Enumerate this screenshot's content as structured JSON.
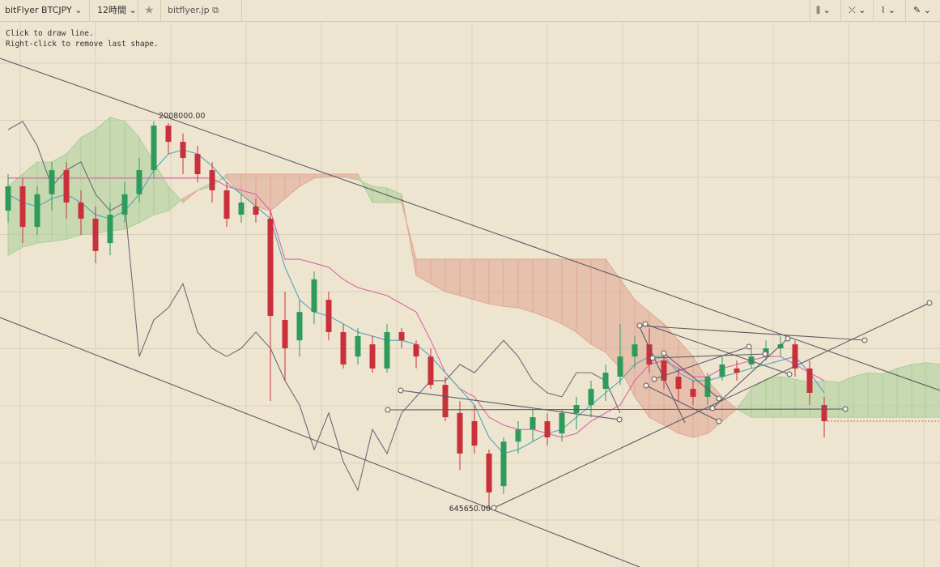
{
  "toolbar": {
    "symbol": "bitFlyer BTCJPY",
    "interval": "12時間",
    "site": "bitflyer.jp"
  },
  "instructions": [
    "Click to draw line.",
    "Right-click to remove last shape."
  ],
  "chart_data": {
    "type": "candlestick",
    "ylim": [
      437000,
      2436000
    ],
    "up_color": "#2e9a5c",
    "down_color": "#c9303a",
    "cloud_up_color": "#a9cf98",
    "cloud_down_color": "#e0a592",
    "candles": [
      [
        1693000,
        1822000,
        1651000,
        1779000
      ],
      [
        1779000,
        1808000,
        1579000,
        1636000
      ],
      [
        1636000,
        1779000,
        1608000,
        1751000
      ],
      [
        1751000,
        1865000,
        1693000,
        1836000
      ],
      [
        1836000,
        1865000,
        1665000,
        1722000
      ],
      [
        1722000,
        1765000,
        1608000,
        1665000
      ],
      [
        1665000,
        1708000,
        1508000,
        1551000
      ],
      [
        1579000,
        1722000,
        1536000,
        1679000
      ],
      [
        1679000,
        1793000,
        1651000,
        1751000
      ],
      [
        1751000,
        1879000,
        1722000,
        1836000
      ],
      [
        1836000,
        2008000,
        1808000,
        1993000
      ],
      [
        1993000,
        2002000,
        1893000,
        1936000
      ],
      [
        1936000,
        1965000,
        1822000,
        1879000
      ],
      [
        1893000,
        1922000,
        1793000,
        1822000
      ],
      [
        1836000,
        1865000,
        1722000,
        1765000
      ],
      [
        1765000,
        1793000,
        1636000,
        1665000
      ],
      [
        1679000,
        1751000,
        1651000,
        1722000
      ],
      [
        1708000,
        1736000,
        1651000,
        1679000
      ],
      [
        1665000,
        1693000,
        1022000,
        1322000
      ],
      [
        1308000,
        1408000,
        1094000,
        1208000
      ],
      [
        1236000,
        1379000,
        1179000,
        1336000
      ],
      [
        1336000,
        1479000,
        1293000,
        1451000
      ],
      [
        1379000,
        1408000,
        1236000,
        1265000
      ],
      [
        1265000,
        1293000,
        1137000,
        1151000
      ],
      [
        1179000,
        1279000,
        1151000,
        1251000
      ],
      [
        1222000,
        1251000,
        1122000,
        1137000
      ],
      [
        1137000,
        1293000,
        1122000,
        1265000
      ],
      [
        1265000,
        1279000,
        1208000,
        1236000
      ],
      [
        1222000,
        1236000,
        1137000,
        1179000
      ],
      [
        1179000,
        1208000,
        1065000,
        1079000
      ],
      [
        1079000,
        1108000,
        951000,
        965000
      ],
      [
        980000,
        1022000,
        779000,
        837000
      ],
      [
        951000,
        1008000,
        837000,
        865000
      ],
      [
        837000,
        851000,
        645650,
        700000
      ],
      [
        722000,
        894000,
        694000,
        879000
      ],
      [
        879000,
        951000,
        837000,
        922000
      ],
      [
        922000,
        994000,
        879000,
        965000
      ],
      [
        951000,
        979000,
        865000,
        894000
      ],
      [
        908000,
        994000,
        879000,
        980000
      ],
      [
        980000,
        1037000,
        922000,
        1008000
      ],
      [
        1008000,
        1094000,
        965000,
        1065000
      ],
      [
        1065000,
        1151000,
        1022000,
        1122000
      ],
      [
        1108000,
        1293000,
        1079000,
        1179000
      ],
      [
        1179000,
        1251000,
        1137000,
        1222000
      ],
      [
        1222000,
        1279000,
        1122000,
        1151000
      ],
      [
        1165000,
        1194000,
        1065000,
        1094000
      ],
      [
        1108000,
        1137000,
        1022000,
        1065000
      ],
      [
        1065000,
        1094000,
        1008000,
        1037000
      ],
      [
        1037000,
        1122000,
        1008000,
        1108000
      ],
      [
        1108000,
        1179000,
        1094000,
        1151000
      ],
      [
        1137000,
        1165000,
        1094000,
        1122000
      ],
      [
        1151000,
        1208000,
        1137000,
        1179000
      ],
      [
        1179000,
        1236000,
        1165000,
        1208000
      ],
      [
        1208000,
        1251000,
        1179000,
        1222000
      ],
      [
        1222000,
        1236000,
        1108000,
        1137000
      ],
      [
        1137000,
        1165000,
        1008000,
        1051000
      ],
      [
        1008000,
        1037000,
        894000,
        951000
      ]
    ],
    "span_a": {
      "values": [
        1779000,
        1822000,
        1865000,
        1865000,
        1893000,
        1951000,
        1979000,
        2022000,
        2008000,
        1951000,
        1865000,
        1779000,
        1722000,
        1765000,
        1793000,
        1808000,
        1751000,
        1708000,
        1693000,
        1736000,
        1779000,
        1808000,
        1813000,
        1813000,
        1802000,
        1779000,
        1773000,
        1751000,
        1465000,
        1436000,
        1408000,
        1394000,
        1379000,
        1365000,
        1356000,
        1351000,
        1336000,
        1317000,
        1294000,
        1265000,
        1222000,
        1194000,
        1137000,
        1037000,
        965000,
        937000,
        908000,
        894000,
        908000,
        951000,
        994000,
        1065000,
        1099000,
        1108000,
        1099000,
        1088000,
        1094000,
        1088000,
        1108000,
        1122000,
        1117000,
        1137000,
        1151000,
        1157000,
        1151000
      ]
    },
    "span_b": {
      "values": [
        1536000,
        1565000,
        1579000,
        1585000,
        1593000,
        1608000,
        1613000,
        1622000,
        1628000,
        1651000,
        1679000,
        1693000,
        1736000,
        1765000,
        1779000,
        1822000,
        1822000,
        1822000,
        1822000,
        1822000,
        1822000,
        1822000,
        1822000,
        1822000,
        1822000,
        1722000,
        1722000,
        1722000,
        1522000,
        1522000,
        1522000,
        1522000,
        1522000,
        1522000,
        1522000,
        1522000,
        1522000,
        1522000,
        1522000,
        1522000,
        1522000,
        1522000,
        1451000,
        1379000,
        1336000,
        1294000,
        1236000,
        1179000,
        1094000,
        1037000,
        994000,
        965000,
        965000,
        965000,
        965000,
        965000,
        965000,
        965000,
        965000,
        965000,
        965000,
        965000,
        965000,
        965000,
        965000
      ]
    },
    "tenkan": {
      "color": "#4ea8b8",
      "values": [
        1751000,
        1722000,
        1708000,
        1736000,
        1751000,
        1722000,
        1679000,
        1665000,
        1693000,
        1751000,
        1836000,
        1893000,
        1908000,
        1893000,
        1851000,
        1793000,
        1751000,
        1708000,
        1665000,
        1494000,
        1379000,
        1336000,
        1322000,
        1294000,
        1265000,
        1251000,
        1236000,
        1236000,
        1222000,
        1179000,
        1122000,
        1065000,
        1008000,
        894000,
        837000,
        851000,
        879000,
        908000,
        922000,
        965000,
        1008000,
        1051000,
        1094000,
        1151000,
        1179000,
        1179000,
        1122000,
        1094000,
        1094000,
        1108000,
        1122000,
        1137000,
        1151000,
        1165000,
        1179000,
        1122000,
        1051000
      ]
    },
    "kijun": {
      "color": "#d867a8",
      "values": [
        1808000,
        1808000,
        1808000,
        1808000,
        1808000,
        1808000,
        1808000,
        1808000,
        1808000,
        1808000,
        1808000,
        1808000,
        1808000,
        1808000,
        1808000,
        1779000,
        1765000,
        1751000,
        1693000,
        1522000,
        1522000,
        1508000,
        1494000,
        1451000,
        1422000,
        1408000,
        1394000,
        1365000,
        1336000,
        1236000,
        1122000,
        1065000,
        1037000,
        965000,
        937000,
        922000,
        922000,
        908000,
        894000,
        908000,
        951000,
        980000,
        1008000,
        1094000,
        1151000,
        1165000,
        1137000,
        1108000,
        1108000,
        1137000,
        1151000,
        1165000,
        1179000,
        1179000,
        1151000,
        1122000,
        1094000
      ]
    },
    "chikou": {
      "color": "#6b6b78",
      "values": [
        1979000,
        2008000,
        1922000,
        1779000,
        1836000,
        1865000,
        1751000,
        1693000,
        1722000,
        1179000,
        1308000,
        1351000,
        1436000,
        1265000,
        1208000,
        1179000,
        1208000,
        1265000,
        1208000,
        1094000,
        1008000,
        851000,
        980000,
        808000,
        708000,
        922000,
        837000,
        980000,
        1037000,
        1094000,
        1094000,
        1151000,
        1122000,
        1179000,
        1236000,
        1179000,
        1094000,
        1051000,
        1037000,
        1122000,
        1122000,
        1094000,
        980000
      ]
    },
    "annotations": [
      {
        "value": 2008000,
        "label": "2008000.00"
      },
      {
        "value": 645650,
        "label": "645650.00"
      }
    ]
  }
}
